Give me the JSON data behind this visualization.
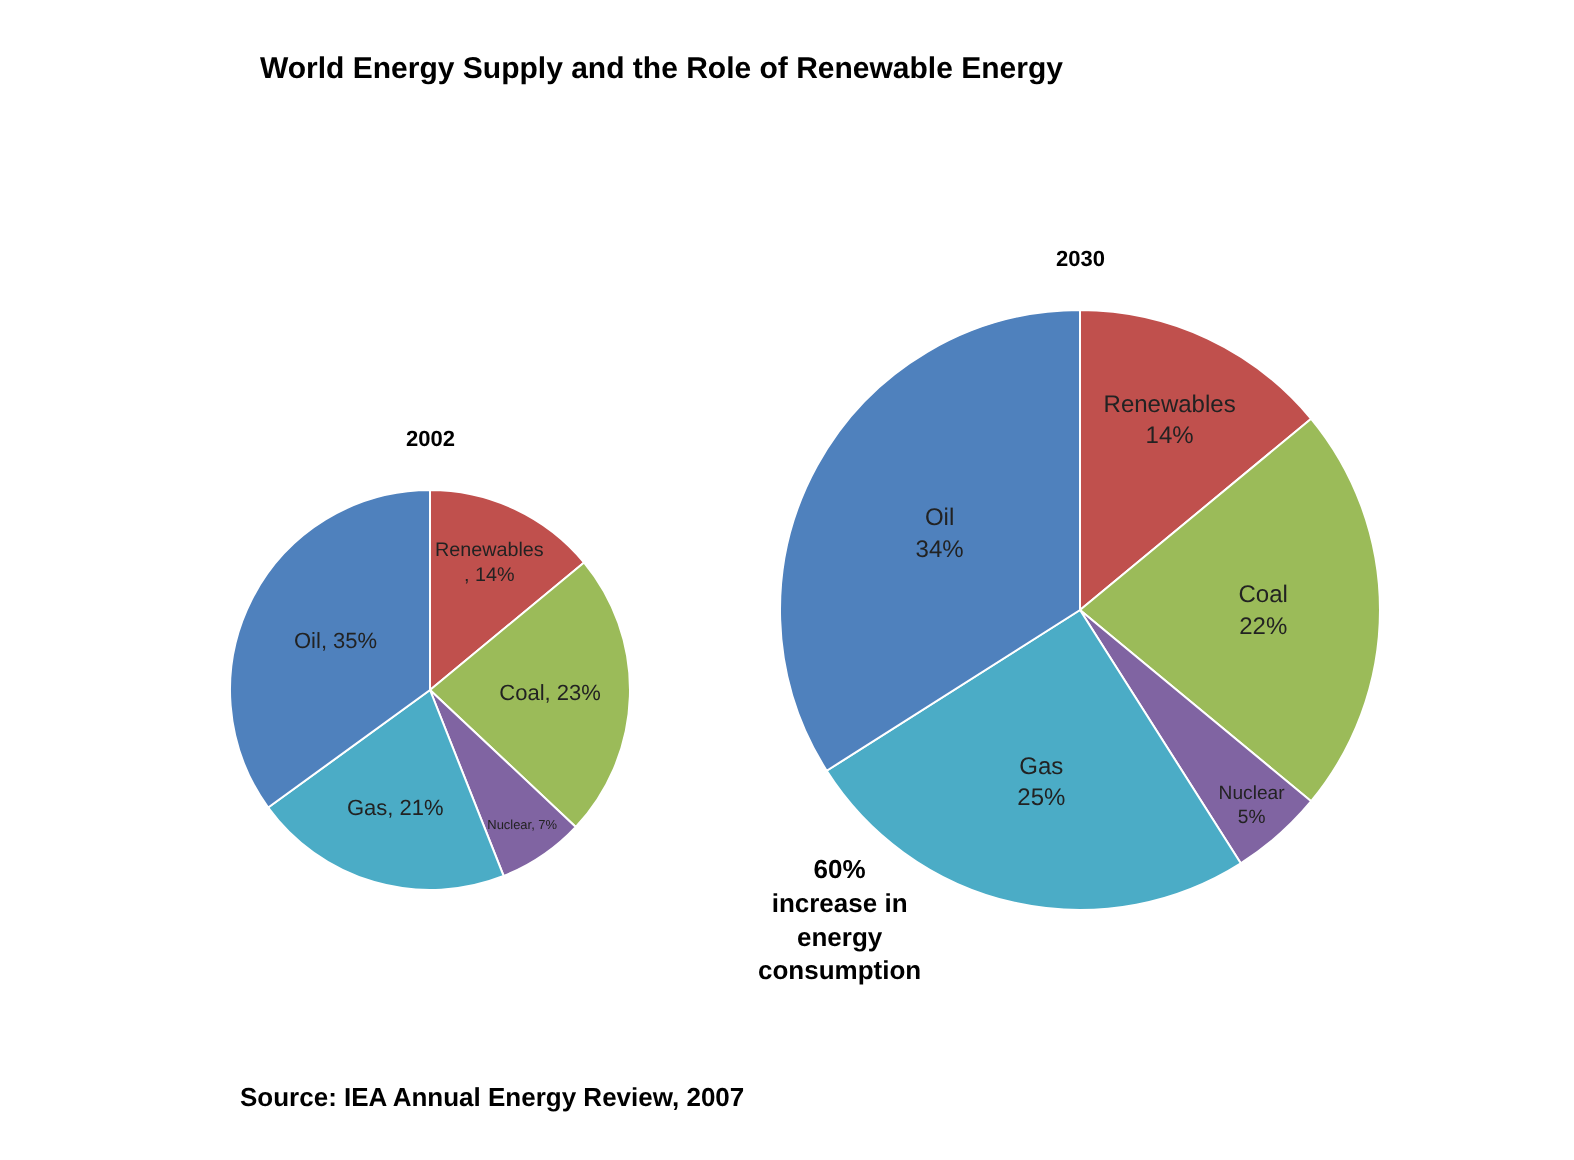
{
  "chart_data": [
    {
      "type": "other",
      "title": "World Energy Supply and the Role of Renewable Energy",
      "annotations": [
        "60%\nincrease in\nenergy\nconsumption",
        "Source: IEA Annual Energy Review, 2007"
      ]
    },
    {
      "type": "pie",
      "title": "2002",
      "categories": [
        "Renewables",
        "Coal",
        "Nuclear",
        "Gas",
        "Oil"
      ],
      "values": [
        14,
        23,
        7,
        21,
        35
      ],
      "colors": [
        "#c0504d",
        "#9bbb59",
        "#8064a2",
        "#4bacc6",
        "#4f81bd"
      ],
      "value_labels": [
        ", 14%",
        "23%",
        "7%",
        "21%",
        "35%"
      ]
    },
    {
      "type": "pie",
      "title": "2030",
      "categories": [
        "Renewables",
        "Coal",
        "Nuclear",
        "Gas",
        "Oil"
      ],
      "values": [
        14,
        22,
        5,
        25,
        34
      ],
      "colors": [
        "#c0504d",
        "#9bbb59",
        "#8064a2",
        "#4bacc6",
        "#4f81bd"
      ],
      "value_labels": [
        "14%",
        "22%",
        "5%",
        "25%",
        "34%"
      ]
    }
  ]
}
